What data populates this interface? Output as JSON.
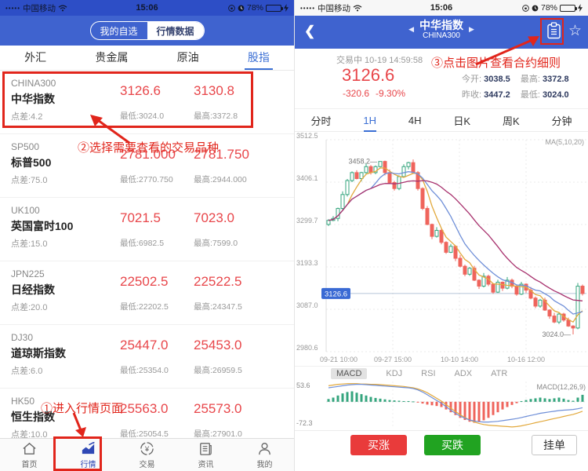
{
  "status_bar": {
    "signal_dots": "•••••",
    "carrier": "中国移动",
    "time": "15:06",
    "battery_pct": "78%"
  },
  "left": {
    "segmented": {
      "my_watchlist": "我的自选",
      "market_data": "行情数据"
    },
    "category_tabs": [
      {
        "label": "外汇"
      },
      {
        "label": "贵金属"
      },
      {
        "label": "原油"
      },
      {
        "label": "股指",
        "active": true
      }
    ],
    "instruments": [
      {
        "code": "CHINA300",
        "name": "中华指数",
        "spread": "点差:4.2",
        "sell": "3126.6",
        "buy": "3130.8",
        "low": "最低:3024.0",
        "high": "最高:3372.8"
      },
      {
        "code": "SP500",
        "name": "标普500",
        "spread": "点差:75.0",
        "sell": "2781.000",
        "buy": "2781.750",
        "low": "最低:2770.750",
        "high": "最高:2944.000"
      },
      {
        "code": "UK100",
        "name": "英国富时100",
        "spread": "点差:15.0",
        "sell": "7021.5",
        "buy": "7023.0",
        "low": "最低:6982.5",
        "high": "最高:7599.0"
      },
      {
        "code": "JPN225",
        "name": "日经指数",
        "spread": "点差:20.0",
        "sell": "22502.5",
        "buy": "22522.5",
        "low": "最低:22202.5",
        "high": "最高:24347.5"
      },
      {
        "code": "DJ30",
        "name": "道琼斯指数",
        "spread": "点差:6.0",
        "sell": "25447.0",
        "buy": "25453.0",
        "low": "最低:25354.0",
        "high": "最高:26959.5"
      },
      {
        "code": "HK50",
        "name": "恒生指数",
        "spread": "点差:10.0",
        "sell": "25563.0",
        "buy": "25573.0",
        "low": "最低:25054.5",
        "high": "最高:27901.0"
      }
    ],
    "nav": [
      {
        "label": "首页"
      },
      {
        "label": "行情",
        "active": true
      },
      {
        "label": "交易"
      },
      {
        "label": "资讯"
      },
      {
        "label": "我的"
      }
    ],
    "annotations": {
      "step1": "①进入行情页面",
      "step2": "②选择需要查看的交易品种"
    }
  },
  "right": {
    "title": "中华指数",
    "subtitle": "CHINA300",
    "trading_status": "交易中 10-19 14:59:58",
    "price": "3126.6",
    "change": "-320.6",
    "change_pct": "-9.30%",
    "stats": {
      "open_label": "今开:",
      "open": "3038.5",
      "high_label": "最高:",
      "high": "3372.8",
      "prev_label": "昨收:",
      "prev": "3447.2",
      "low_label": "最低:",
      "low": "3024.0"
    },
    "period_tabs": [
      {
        "label": "分时"
      },
      {
        "label": "1H",
        "active": true
      },
      {
        "label": "4H"
      },
      {
        "label": "日K"
      },
      {
        "label": "周K"
      },
      {
        "label": "分钟"
      }
    ],
    "ma_label": "MA(5,10,20)",
    "indicator_tabs": [
      {
        "label": "MACD",
        "active": true
      },
      {
        "label": "KDJ"
      },
      {
        "label": "RSI"
      },
      {
        "label": "ADX"
      },
      {
        "label": "ATR"
      }
    ],
    "annotations": {
      "step3": "③点击图片查看合约细则"
    },
    "buttons": {
      "buy_up": "买涨",
      "buy_down": "买跌",
      "pending": "挂单"
    }
  },
  "chart_data": {
    "type": "candlestick",
    "title": "CHINA300 1H",
    "y_axis": {
      "max": 3512.5,
      "min": 2980.6,
      "labels": [
        "3512.5",
        "3406.1",
        "3299.7",
        "3193.3",
        "3087.0",
        "2980.6"
      ]
    },
    "x_labels": [
      "09-21 10:00",
      "09-27 15:00",
      "10-10 14:00",
      "10-16 12:00"
    ],
    "open_first": 3300,
    "closes": [
      3310,
      3315,
      3340,
      3375,
      3410,
      3430,
      3415,
      3430,
      3445,
      3430,
      3445,
      3458,
      3430,
      3405,
      3390,
      3420,
      3445,
      3455,
      3430,
      3390,
      3340,
      3300,
      3270,
      3285,
      3255,
      3230,
      3245,
      3215,
      3195,
      3175,
      3190,
      3160,
      3145,
      3170,
      3150,
      3130,
      3155,
      3140,
      3160,
      3145,
      3125,
      3150,
      3135,
      3115,
      3095,
      3110,
      3085,
      3070,
      3055,
      3075,
      3060,
      3045,
      3040,
      3145,
      3126.6
    ],
    "high_annotation": {
      "index": 11,
      "price": 3458.2,
      "label": "3458.2"
    },
    "low_annotation": {
      "index": 52,
      "price": 3024.0,
      "label": "3024.0"
    },
    "current_price": {
      "value": 3126.6,
      "label": "3126.6"
    },
    "ma_periods": [
      5,
      10,
      20
    ],
    "macd": {
      "label": "MACD(12,26,9)",
      "max_label": "53.6",
      "min_label": "-72.3",
      "max": 53.6,
      "min": -72.3,
      "hist": [
        8,
        12,
        18,
        24,
        28,
        30,
        26,
        22,
        18,
        14,
        11,
        9,
        7,
        5,
        4,
        3,
        2,
        2,
        1,
        -2,
        -5,
        -8,
        -10,
        -12,
        -15,
        -22,
        -30,
        -38,
        -46,
        -52,
        -57,
        -60,
        -58,
        -53,
        -46,
        -38,
        -30,
        -22,
        -15,
        -9,
        -4,
        2,
        5,
        8,
        10,
        12,
        10,
        8,
        10,
        12,
        9,
        5,
        3,
        12,
        20
      ],
      "dif": [
        40,
        42,
        44,
        46,
        48,
        49,
        50,
        50,
        49,
        48,
        47,
        46,
        45,
        44,
        43,
        42,
        41,
        40,
        38,
        34,
        28,
        20,
        12,
        4,
        -4,
        -14,
        -24,
        -33,
        -41,
        -47,
        -52,
        -55,
        -57,
        -58,
        -58,
        -57,
        -56,
        -54,
        -52,
        -50,
        -48,
        -45,
        -42,
        -39,
        -36,
        -33,
        -31,
        -29,
        -27,
        -25,
        -24,
        -23,
        -22,
        -20,
        -17
      ],
      "dea": [
        46,
        48,
        50,
        51,
        52,
        52,
        52,
        51,
        51,
        50,
        50,
        49,
        48,
        47,
        46,
        45,
        44,
        42,
        40,
        37,
        32,
        26,
        18,
        10,
        2,
        -8,
        -18,
        -28,
        -37,
        -45,
        -52,
        -58,
        -62,
        -65,
        -67,
        -68,
        -69,
        -70,
        -71,
        -72,
        -71,
        -69,
        -66,
        -63,
        -60,
        -57,
        -54,
        -51,
        -48,
        -45,
        -42,
        -39,
        -36,
        -32,
        -27
      ]
    },
    "colors": {
      "up": "#35a57e",
      "down": "#ef645c",
      "ma5": "#e2a93d",
      "ma10": "#6f8fd8",
      "ma20": "#a8326e",
      "tag": "#3a6ad4",
      "hist_up": "#35a57e",
      "hist_down": "#ef645c"
    }
  },
  "colors": {
    "header_blue": "#3f63cf",
    "accent_blue": "#3b6fd4",
    "price_red": "#e8464a",
    "tutorial_red": "#e1251b",
    "buy_red": "#e93b3b",
    "sell_green": "#21a321"
  }
}
